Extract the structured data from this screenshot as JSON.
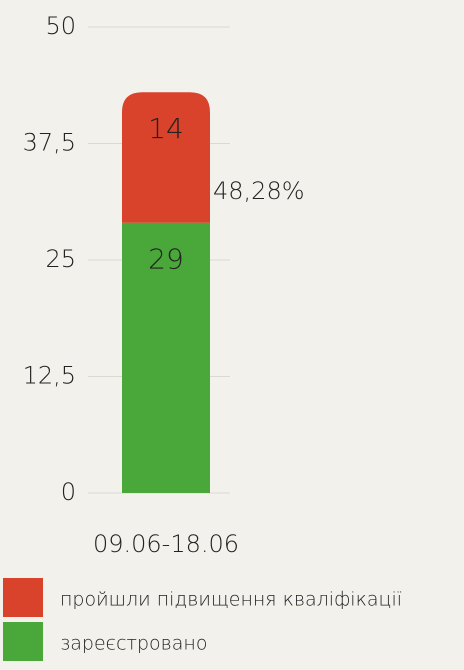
{
  "chart_data": {
    "type": "stacked_bar",
    "categories": [
      "09.06-18.06"
    ],
    "series": [
      {
        "name": "зареєстровано",
        "color": "#4aa83a",
        "values": [
          29
        ]
      },
      {
        "name": "пройшли підвищення кваліфікації",
        "color": "#d9432b",
        "values": [
          14
        ]
      }
    ],
    "annotations": [
      "48,28%"
    ],
    "ylim": [
      0,
      50
    ],
    "yticks": [
      0,
      {
        "value": 12.5,
        "label": "12,5"
      },
      25,
      {
        "value": 37.5,
        "label": "37,5"
      },
      50
    ],
    "grid": true
  }
}
